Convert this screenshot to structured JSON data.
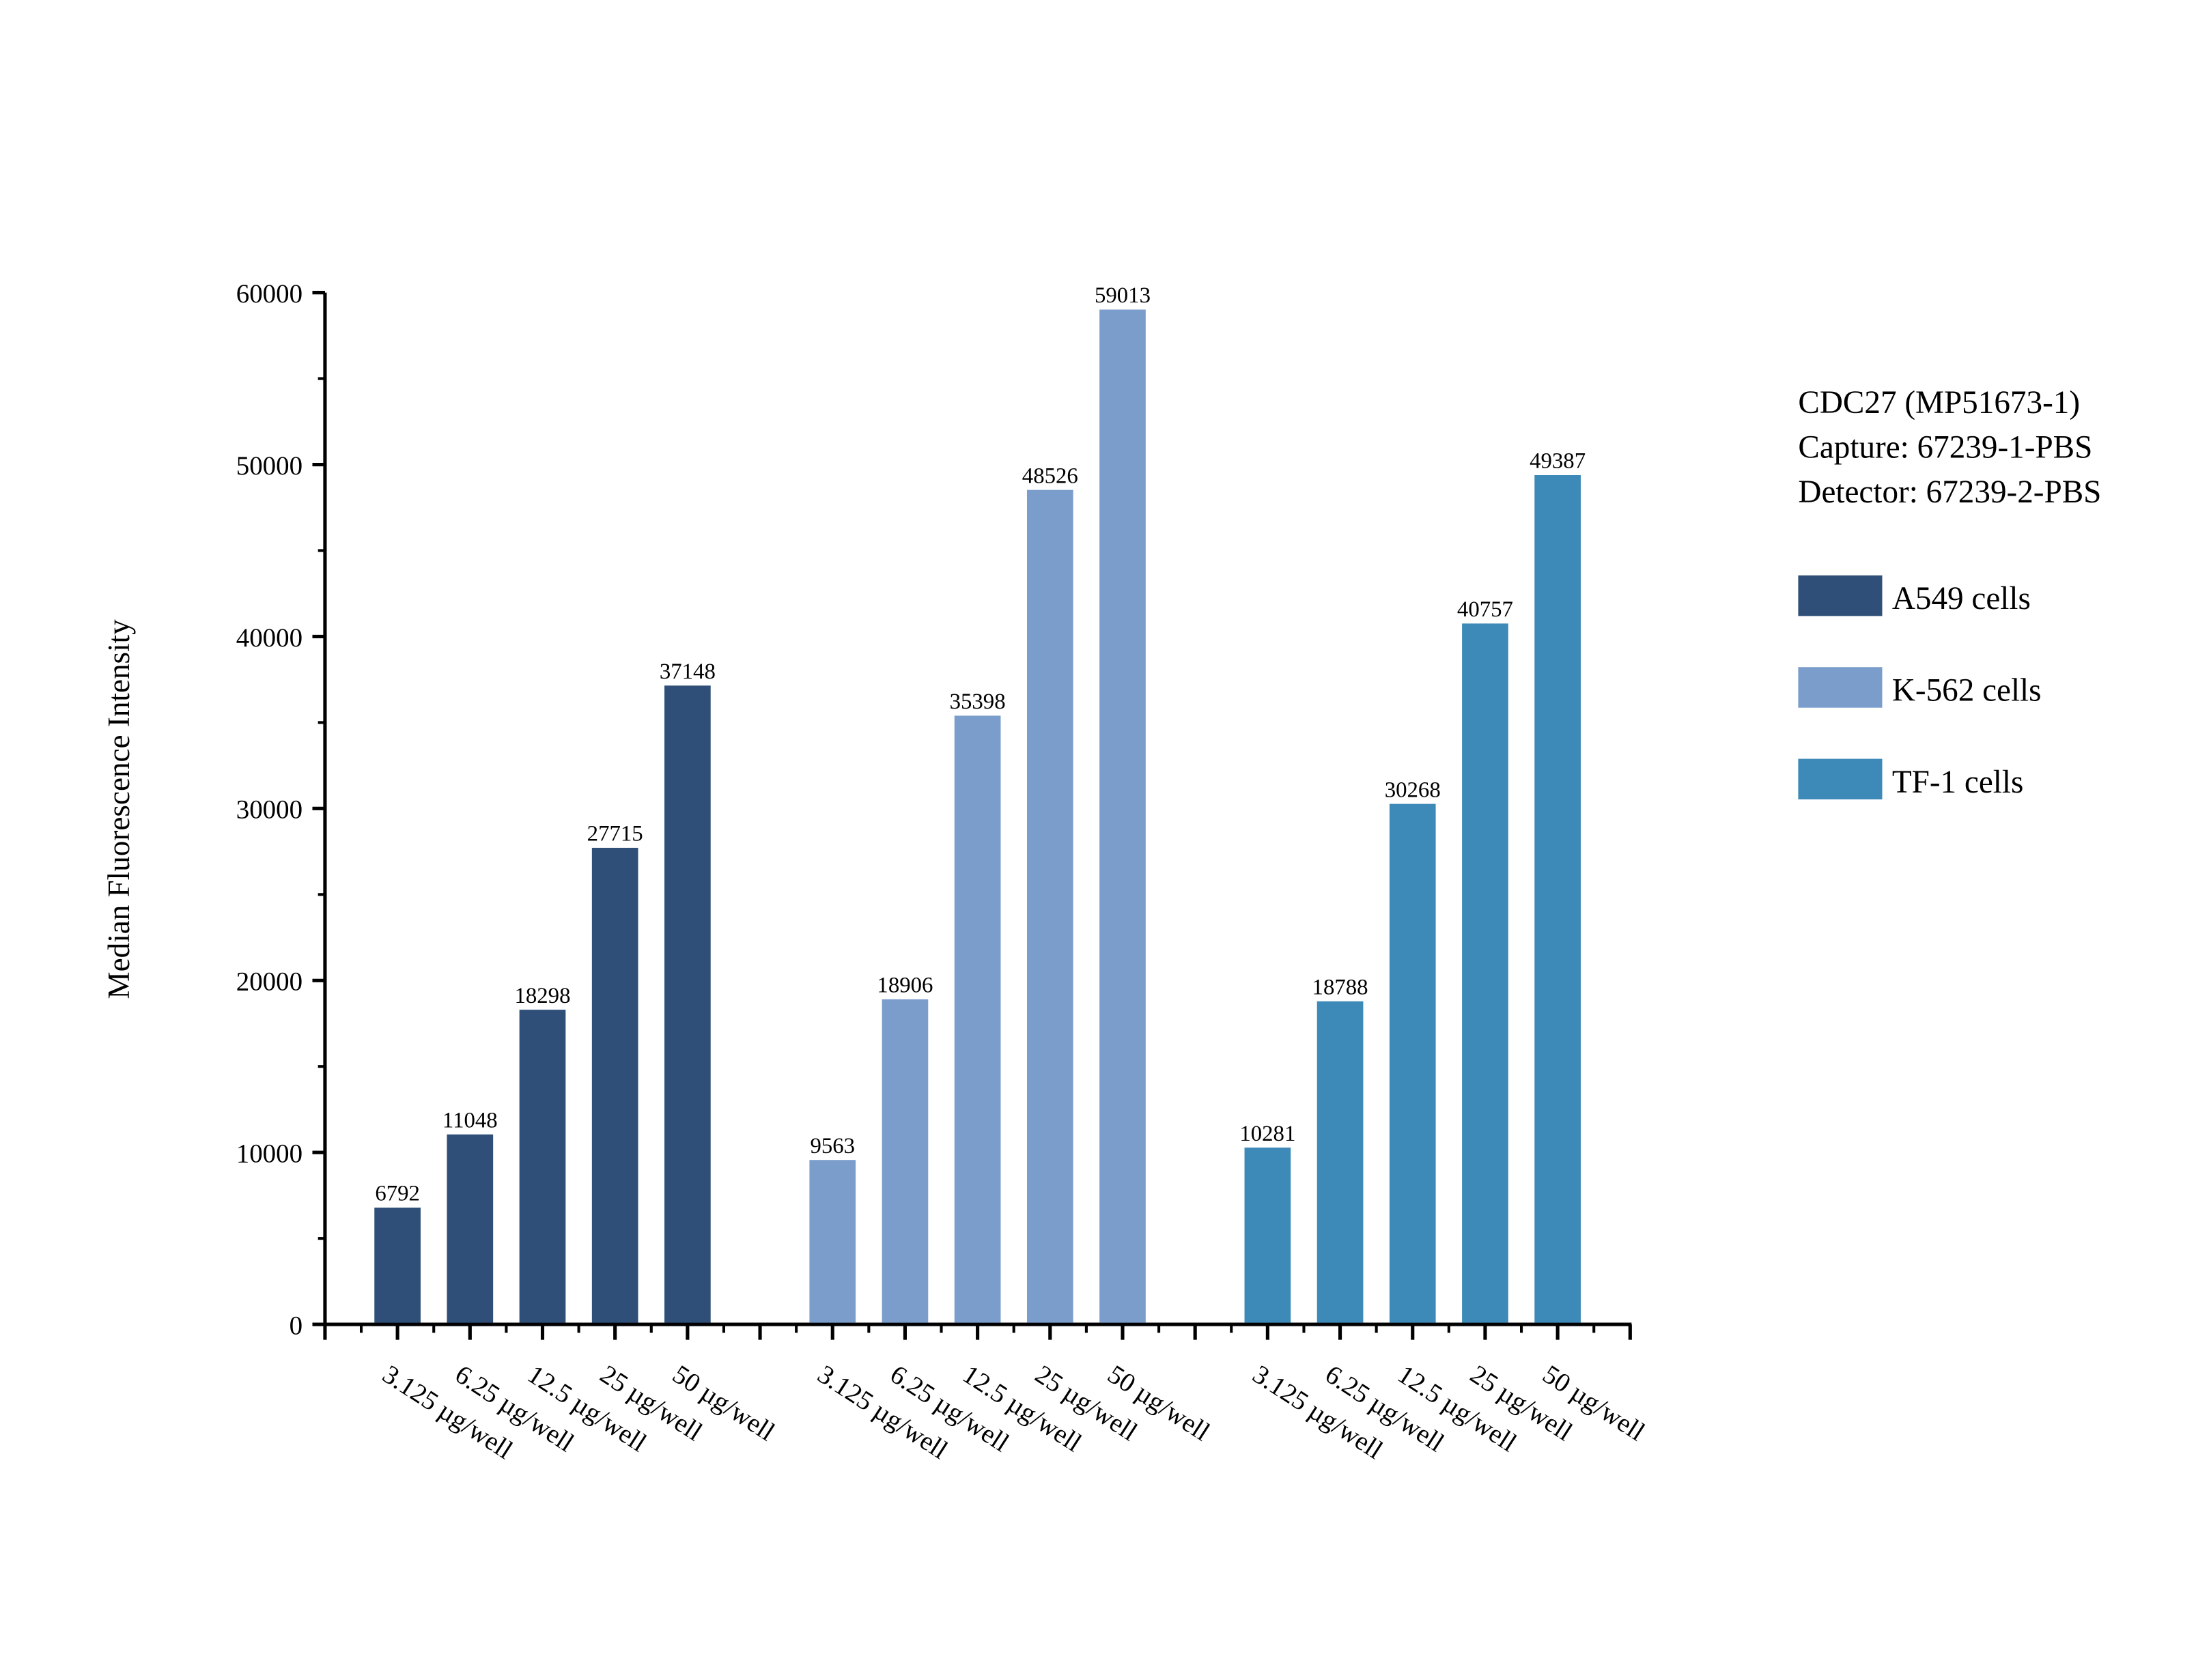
{
  "chart_data": {
    "type": "bar",
    "title": "",
    "ylabel": "Median Fluorescence Intensity",
    "xlabel": "",
    "ylim": [
      0,
      60000
    ],
    "yticks": [
      "0",
      "10000",
      "20000",
      "30000",
      "40000",
      "50000",
      "60000"
    ],
    "grid": false,
    "categories": [
      "3.125 µg/well",
      "6.25 µg/well",
      "12.5 µg/well",
      "25 µg/well",
      "50 µg/well"
    ],
    "series": [
      {
        "name": "A549 cells",
        "color": "#2f4f78",
        "values": [
          6792,
          11048,
          18298,
          27715,
          37148
        ]
      },
      {
        "name": "K-562 cells",
        "color": "#7b9dcb",
        "values": [
          9563,
          18906,
          35398,
          48526,
          59013
        ]
      },
      {
        "name": "TF-1 cells",
        "color": "#3d89b7",
        "values": [
          10281,
          18788,
          30268,
          40757,
          49387
        ]
      }
    ],
    "legend": {
      "position": "right",
      "header": [
        "CDC27 (MP51673-1)",
        "Capture: 67239-1-PBS",
        "Detector: 67239-2-PBS"
      ]
    }
  }
}
